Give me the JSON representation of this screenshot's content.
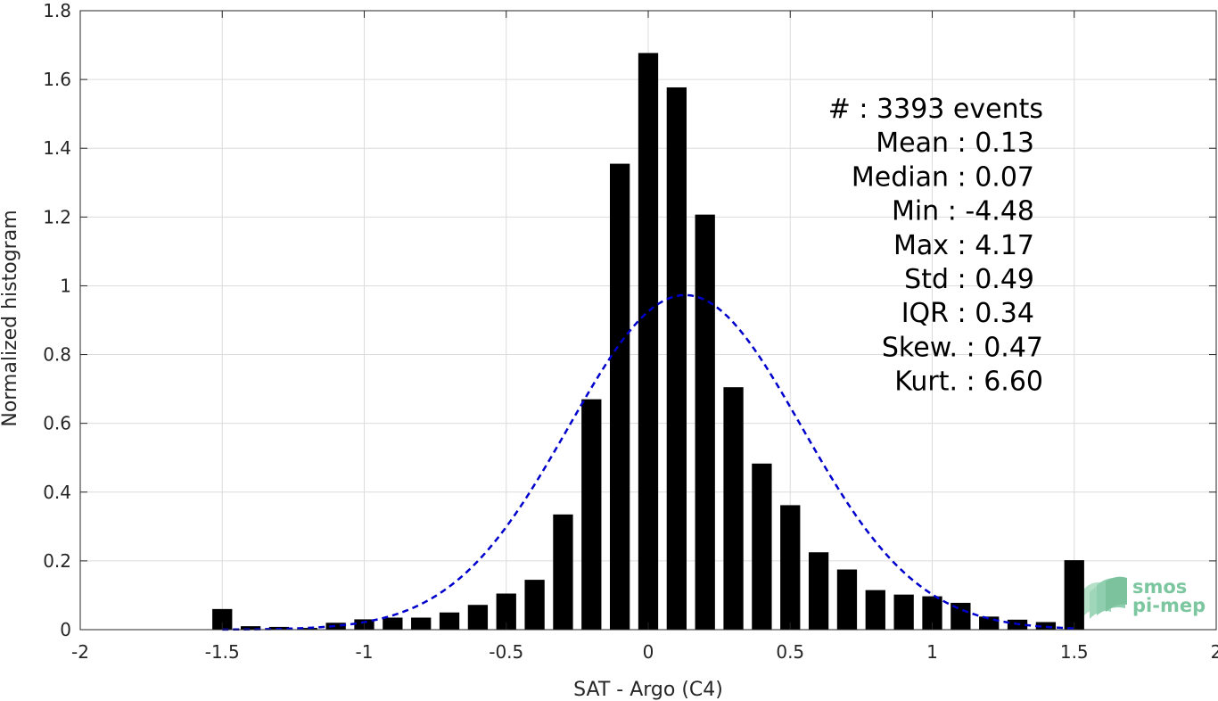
{
  "chart_data": {
    "type": "bar",
    "xlabel": "SAT - Argo (C4)",
    "ylabel": "Normalized histogram",
    "xlim": [
      -2,
      2
    ],
    "ylim": [
      0,
      1.8
    ],
    "xticks": [
      -2,
      -1.5,
      -1,
      -0.5,
      0,
      0.5,
      1,
      1.5,
      2
    ],
    "xtick_labels": [
      "-2",
      "-1.5",
      "-1",
      "-0.5",
      "0",
      "0.5",
      "1",
      "1.5",
      "2"
    ],
    "yticks": [
      0,
      0.2,
      0.4,
      0.6,
      0.8,
      1,
      1.2,
      1.4,
      1.6,
      1.8
    ],
    "ytick_labels": [
      "0",
      "0.2",
      "0.4",
      "0.6",
      "0.8",
      "1",
      "1.2",
      "1.4",
      "1.6",
      "1.8"
    ],
    "grid": true,
    "bar_color": "#000000",
    "bin_width": 0.1,
    "bins": [
      {
        "x": -1.5,
        "y": 0.06
      },
      {
        "x": -1.4,
        "y": 0.01
      },
      {
        "x": -1.3,
        "y": 0.008
      },
      {
        "x": -1.2,
        "y": 0.005
      },
      {
        "x": -1.1,
        "y": 0.02
      },
      {
        "x": -1.0,
        "y": 0.03
      },
      {
        "x": -0.9,
        "y": 0.035
      },
      {
        "x": -0.8,
        "y": 0.035
      },
      {
        "x": -0.7,
        "y": 0.05
      },
      {
        "x": -0.6,
        "y": 0.072
      },
      {
        "x": -0.5,
        "y": 0.105
      },
      {
        "x": -0.4,
        "y": 0.145
      },
      {
        "x": -0.3,
        "y": 0.335
      },
      {
        "x": -0.2,
        "y": 0.67
      },
      {
        "x": -0.1,
        "y": 1.355
      },
      {
        "x": 0.0,
        "y": 1.677
      },
      {
        "x": 0.1,
        "y": 1.577
      },
      {
        "x": 0.2,
        "y": 1.207
      },
      {
        "x": 0.3,
        "y": 0.705
      },
      {
        "x": 0.4,
        "y": 0.483
      },
      {
        "x": 0.5,
        "y": 0.362
      },
      {
        "x": 0.6,
        "y": 0.225
      },
      {
        "x": 0.7,
        "y": 0.175
      },
      {
        "x": 0.8,
        "y": 0.115
      },
      {
        "x": 0.9,
        "y": 0.102
      },
      {
        "x": 1.0,
        "y": 0.097
      },
      {
        "x": 1.1,
        "y": 0.078
      },
      {
        "x": 1.2,
        "y": 0.038
      },
      {
        "x": 1.3,
        "y": 0.029
      },
      {
        "x": 1.4,
        "y": 0.022
      },
      {
        "x": 1.5,
        "y": 0.202
      }
    ],
    "fit_curve": {
      "style": "dashed",
      "color": "#0000cc",
      "mean": 0.13,
      "std": 0.41,
      "x_range": [
        -1.5,
        1.5
      ]
    },
    "stats": [
      "#  : 3393 events",
      "Mean : 0.13",
      "Median : 0.07",
      "Min : -4.48",
      "Max : 4.17",
      "Std : 0.49",
      "IQR : 0.34",
      "Skew. : 0.47",
      "Kurt. : 6.60"
    ]
  },
  "logo": {
    "line1": "smos",
    "line2": "pi-mep",
    "color": "#7cc6a0"
  }
}
